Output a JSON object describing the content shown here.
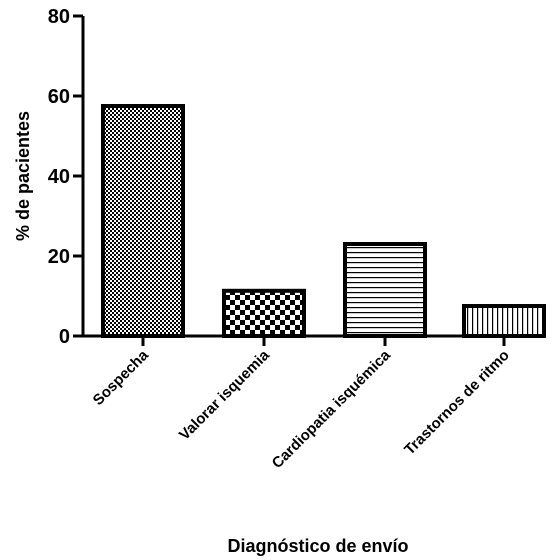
{
  "chart_data": {
    "type": "bar",
    "categories": [
      "Sospecha",
      "Valorar isquemia",
      "Cardiopatia isquémica",
      "Trastornos de ritmo"
    ],
    "values": [
      57.5,
      11.3,
      23.0,
      7.5
    ],
    "patterns": [
      "fine-checker",
      "checker",
      "horizontal-lines",
      "vertical-lines"
    ],
    "xlabel": "Diagnóstico de envío",
    "ylabel": "% de pacientes",
    "ylim": [
      0,
      80
    ],
    "yticks": [
      "0",
      "20",
      "40",
      "60",
      "80"
    ],
    "grid": false,
    "bar_color": "#000000",
    "background": "#ffffff"
  }
}
